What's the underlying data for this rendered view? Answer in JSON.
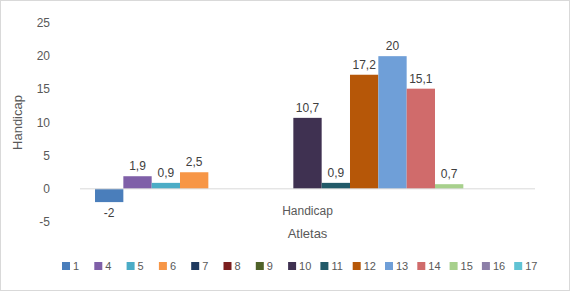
{
  "chart_data": {
    "type": "bar",
    "x_label": "Atletas",
    "y_label": "Handicap",
    "categories": [
      "Handicap"
    ],
    "series": [
      {
        "name": "1",
        "color": "#4a7ebb",
        "values": [
          -2
        ],
        "value_labels": [
          "-2"
        ]
      },
      {
        "name": "4",
        "color": "#7f5fa8",
        "values": [
          1.9
        ],
        "value_labels": [
          "1,9"
        ]
      },
      {
        "name": "5",
        "color": "#4bacc6",
        "values": [
          0.9
        ],
        "value_labels": [
          "0,9"
        ]
      },
      {
        "name": "6",
        "color": "#f79646",
        "values": [
          2.5
        ],
        "value_labels": [
          "2,5"
        ]
      },
      {
        "name": "7",
        "color": "#1f3a5f",
        "values": [
          null
        ]
      },
      {
        "name": "8",
        "color": "#7b1e1e",
        "values": [
          null
        ]
      },
      {
        "name": "9",
        "color": "#4f6228",
        "values": [
          null
        ]
      },
      {
        "name": "10",
        "color": "#3f3151",
        "values": [
          10.7
        ],
        "value_labels": [
          "10,7"
        ]
      },
      {
        "name": "11",
        "color": "#215968",
        "values": [
          0.9
        ],
        "value_labels": [
          "0,9"
        ]
      },
      {
        "name": "12",
        "color": "#b65708",
        "values": [
          17.2
        ],
        "value_labels": [
          "17,2"
        ]
      },
      {
        "name": "13",
        "color": "#6f9fd8",
        "values": [
          20
        ],
        "value_labels": [
          "20"
        ]
      },
      {
        "name": "14",
        "color": "#d06b6b",
        "values": [
          15.1
        ],
        "value_labels": [
          "15,1"
        ]
      },
      {
        "name": "15",
        "color": "#a7d08c",
        "values": [
          0.7
        ],
        "value_labels": [
          "0,7"
        ]
      },
      {
        "name": "16",
        "color": "#8c7fa8",
        "values": [
          null
        ]
      },
      {
        "name": "17",
        "color": "#60c3d4",
        "values": [
          null
        ]
      }
    ],
    "ylim": [
      -5,
      25
    ],
    "yticks": [
      -5,
      0,
      5,
      10,
      15,
      20,
      25
    ],
    "grid": false,
    "legend": "bottom",
    "data_labels": true
  }
}
